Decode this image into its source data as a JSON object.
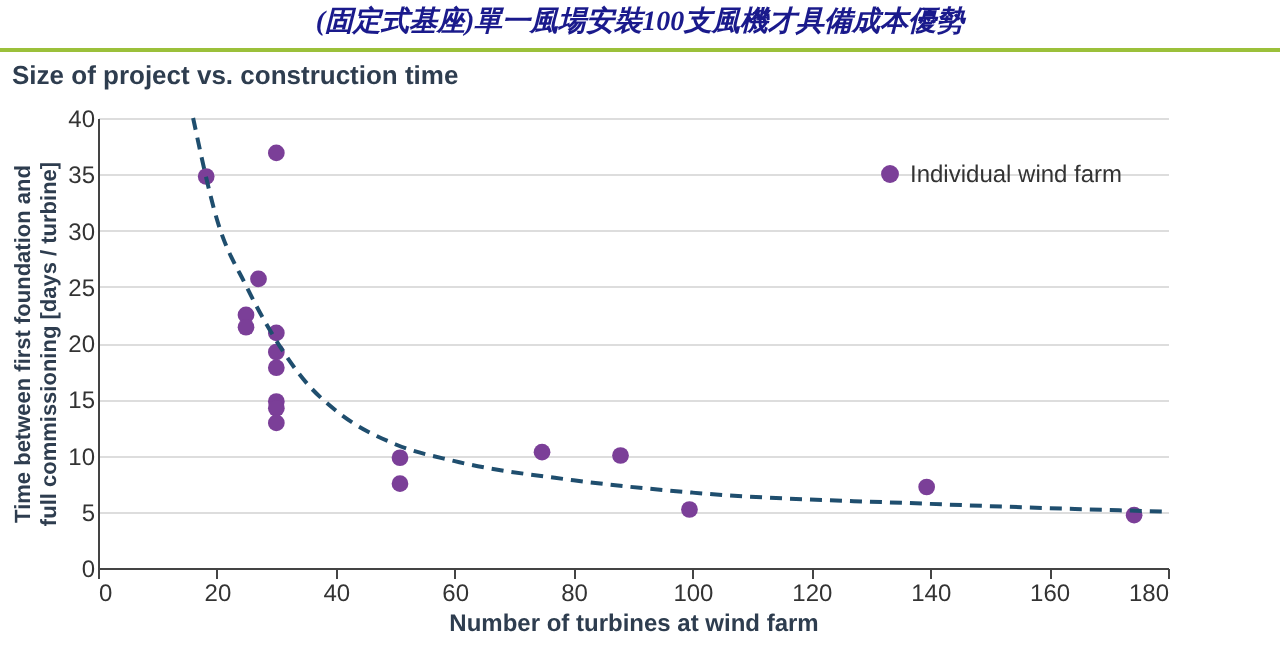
{
  "chart_data": {
    "type": "scatter",
    "title": "(固定式基座)單一風場安裝100支風機才具備成本優勢",
    "subtitle": "Size of project vs. construction time",
    "xlabel": "Number of turbines at wind farm",
    "ylabel": "Time between first foundation and\nfull commissioning [days / turbine]",
    "xlim": [
      0,
      180
    ],
    "xticks": [
      0,
      20,
      40,
      60,
      80,
      100,
      120,
      140,
      160,
      180
    ],
    "ylim": [
      0,
      40
    ],
    "yticks": [
      0,
      5,
      10,
      15,
      20,
      25,
      30,
      35,
      40
    ],
    "grid": "y",
    "legend": "top right",
    "marker": "circle",
    "series": [
      {
        "name": "Individual wind farm",
        "color": "#7b3f98",
        "x": [
          18.2,
          30,
          27,
          24.9,
          24.9,
          30,
          30,
          30,
          30,
          30,
          30,
          50.8,
          50.8,
          74.7,
          87.9,
          99.5,
          139.4,
          174.3
        ],
        "values": [
          34.8,
          36.9,
          25.7,
          22.5,
          21.4,
          20.9,
          19.2,
          17.8,
          14.8,
          14.2,
          12.9,
          9.8,
          7.5,
          10.3,
          10,
          5.2,
          7.2,
          4.7
        ]
      },
      {
        "type": "line",
        "color": "#1f4e6e",
        "line_style": "dashed",
        "marker": "none",
        "x": [
          16,
          20,
          25,
          30,
          35,
          40,
          50,
          60,
          80,
          100,
          140,
          180
        ],
        "values": [
          40,
          31,
          25,
          20.2,
          16.5,
          14,
          11,
          9.5,
          7.8,
          6.7,
          5.7,
          5
        ]
      }
    ]
  }
}
